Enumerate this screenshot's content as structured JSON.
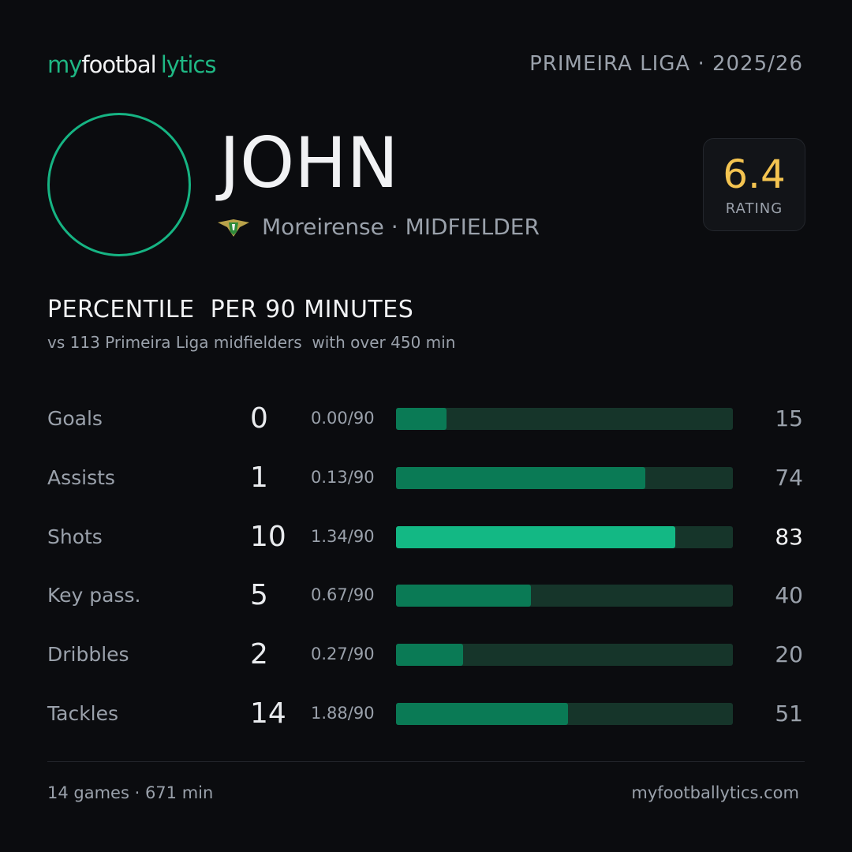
{
  "header": {
    "brand": [
      "my",
      "footbal",
      "lytics"
    ],
    "league": "PRIMEIRA LIGA · 2025/26"
  },
  "player": {
    "name": "JOHN",
    "club": "Moreirense",
    "position": "· MIDFIELDER",
    "rating": 6.4,
    "rating_label": "RATING"
  },
  "section": {
    "title": "PERCENTILE  PER 90 MINUTES",
    "subtitle": "vs 113 Primeira Liga midfielders  with over 450 min"
  },
  "percentile_scale": [
    0,
    100
  ],
  "track_color": "#16352a",
  "rows": [
    {
      "label": "Goals",
      "total": 0,
      "per90": "0.00/90",
      "percentile": 15,
      "color": "#0a7a55"
    },
    {
      "label": "Assists",
      "total": 1,
      "per90": "0.13/90",
      "percentile": 74,
      "color": "#0a7a55"
    },
    {
      "label": "Shots",
      "total": 10,
      "per90": "1.34/90",
      "percentile": 83,
      "color": "#13b884"
    },
    {
      "label": "Key pass.",
      "total": 5,
      "per90": "0.67/90",
      "percentile": 40,
      "color": "#0a7a55"
    },
    {
      "label": "Dribbles",
      "total": 2,
      "per90": "0.27/90",
      "percentile": 20,
      "color": "#0a7a55"
    },
    {
      "label": "Tackles",
      "total": 14,
      "per90": "1.88/90",
      "percentile": 51,
      "color": "#0a7a55"
    }
  ],
  "footer": {
    "stats": "14 games · 671 min",
    "site": "myfootballytics.com"
  }
}
